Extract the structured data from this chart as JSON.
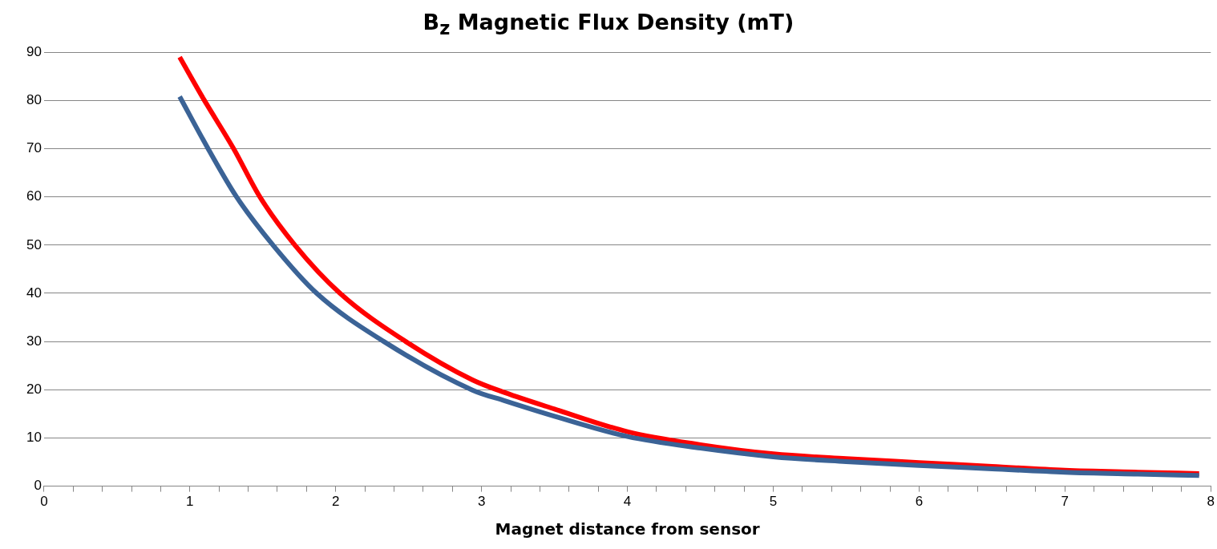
{
  "chart_data": {
    "type": "line",
    "title": "B$_{z}$ Magnetic Flux Density (mT)",
    "xlabel": "Magnet distance from sensor",
    "xlim": [
      0,
      8
    ],
    "ylim": [
      0,
      90
    ],
    "xticks": [
      0,
      {
        "value": 0.2,
        "label": null
      },
      {
        "value": 0.4,
        "label": null
      },
      {
        "value": 0.6,
        "label": null
      },
      {
        "value": 0.8,
        "label": null
      },
      1,
      {
        "value": 1.2,
        "label": null
      },
      {
        "value": 1.4,
        "label": null
      },
      {
        "value": 1.6,
        "label": null
      },
      {
        "value": 1.8,
        "label": null
      },
      2,
      {
        "value": 2.2,
        "label": null
      },
      {
        "value": 2.4,
        "label": null
      },
      {
        "value": 2.6,
        "label": null
      },
      {
        "value": 2.8,
        "label": null
      },
      3,
      {
        "value": 3.2,
        "label": null
      },
      {
        "value": 3.4,
        "label": null
      },
      {
        "value": 3.6,
        "label": null
      },
      {
        "value": 3.8,
        "label": null
      },
      4,
      {
        "value": 4.2,
        "label": null
      },
      {
        "value": 4.4,
        "label": null
      },
      {
        "value": 4.6,
        "label": null
      },
      {
        "value": 4.8,
        "label": null
      },
      5,
      {
        "value": 5.2,
        "label": null
      },
      {
        "value": 5.4,
        "label": null
      },
      {
        "value": 5.6,
        "label": null
      },
      {
        "value": 5.8,
        "label": null
      },
      6,
      {
        "value": 6.2,
        "label": null
      },
      {
        "value": 6.4,
        "label": null
      },
      {
        "value": 6.6,
        "label": null
      },
      {
        "value": 6.8,
        "label": null
      },
      7,
      {
        "value": 7.2,
        "label": null
      },
      {
        "value": 7.4,
        "label": null
      },
      {
        "value": 7.6,
        "label": null
      },
      {
        "value": 7.8,
        "label": null
      },
      8
    ],
    "yticks": [
      0,
      10,
      20,
      30,
      40,
      50,
      60,
      70,
      80,
      90
    ],
    "grid": "y",
    "legend": false,
    "marker": "none",
    "line_style": "solid",
    "series": [
      {
        "color": "#3b6396",
        "x": [
          0.93,
          1.125,
          1.32,
          1.57,
          1.87,
          2.33,
          2.94,
          3.16,
          3.5,
          4,
          4.5,
          5,
          5.5,
          6,
          6.5,
          7,
          7.5,
          7.92
        ],
        "values": [
          80.8,
          70,
          60,
          50,
          40,
          30,
          19.9,
          17.7,
          14.5,
          10.3,
          7.9,
          6.1,
          5.1,
          4.3,
          3.6,
          2.9,
          2.5,
          2.2
        ]
      },
      {
        "color": "#ff0000",
        "x": [
          0.93,
          1.1,
          1.3,
          1.48,
          1.72,
          2.03,
          2.48,
          2.94,
          3.16,
          3.5,
          4,
          4.5,
          5,
          5.5,
          6,
          6.5,
          7,
          7.5,
          7.92
        ],
        "values": [
          89,
          80,
          70,
          60,
          50,
          40,
          30,
          22,
          19.4,
          16,
          11.3,
          8.6,
          6.7,
          5.7,
          4.9,
          4.1,
          3.3,
          2.9,
          2.6
        ]
      }
    ]
  }
}
